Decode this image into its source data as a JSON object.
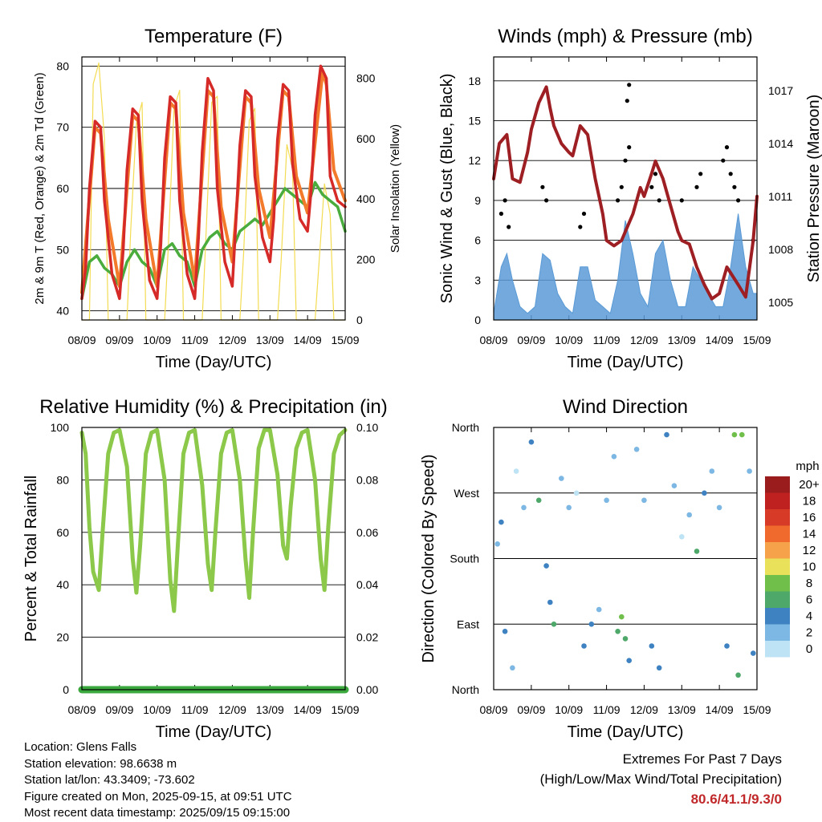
{
  "x_ticks": [
    "08/09",
    "09/09",
    "10/09",
    "11/09",
    "12/09",
    "13/09",
    "14/09",
    "15/09"
  ],
  "colors": {
    "temp_2m": "#d62a28",
    "temp_9m": "#f27a2a",
    "dewpoint": "#4aac3c",
    "solar": "#f3dc52",
    "wind": "#5a9ad6",
    "gust": "#000000",
    "pressure": "#9e1f23",
    "rh": "#8cc84a",
    "precip": "#3aa83c"
  },
  "chart_data": [
    {
      "id": "temperature",
      "type": "line",
      "title": "Temperature (F)",
      "xlabel": "Time (Day/UTC)",
      "ylabel": "2m & 9m T (Red, Orange) & 2m Td (Green)",
      "ylabel_right": "Solar Insolation (Yellow)",
      "ylim": [
        38.5,
        81.5
      ],
      "ylim_right": [
        0,
        870
      ],
      "yticks": [
        40,
        50,
        60,
        70,
        80
      ],
      "yticks_right": [
        0,
        200,
        400,
        600,
        800
      ],
      "grid": true,
      "series": [
        {
          "name": "2m T",
          "color": "#d62a28",
          "x": [
            0,
            0.1,
            0.2,
            0.35,
            0.5,
            0.6,
            0.8,
            1.0,
            1.1,
            1.2,
            1.35,
            1.5,
            1.6,
            1.8,
            2.0,
            2.1,
            2.2,
            2.35,
            2.5,
            2.6,
            2.8,
            3.0,
            3.1,
            3.2,
            3.35,
            3.5,
            3.6,
            3.8,
            4.0,
            4.1,
            4.2,
            4.35,
            4.5,
            4.6,
            4.8,
            5.0,
            5.1,
            5.2,
            5.35,
            5.5,
            5.6,
            5.8,
            6.0,
            6.1,
            6.2,
            6.35,
            6.5,
            6.6,
            6.8,
            7.0
          ],
          "y": [
            42,
            47,
            60,
            71,
            70,
            58,
            46,
            42,
            50,
            63,
            73,
            72,
            58,
            45,
            42,
            51,
            65,
            75,
            74,
            58,
            46,
            42,
            52,
            66,
            78,
            76,
            60,
            48,
            44,
            55,
            67,
            76,
            75,
            62,
            52,
            48,
            55,
            68,
            77,
            76,
            64,
            55,
            53,
            60,
            72,
            80,
            78,
            62,
            58,
            57
          ]
        },
        {
          "name": "9m T",
          "color": "#f27a2a",
          "x": [
            0,
            0.35,
            0.5,
            0.7,
            1.0,
            1.35,
            1.5,
            1.7,
            2.0,
            2.35,
            2.5,
            2.7,
            3.0,
            3.35,
            3.5,
            3.7,
            4.0,
            4.35,
            4.5,
            4.7,
            5.0,
            5.35,
            5.5,
            5.7,
            6.0,
            6.4,
            6.5,
            6.7,
            7.0
          ],
          "y": [
            43,
            70,
            69,
            55,
            44,
            72,
            71,
            55,
            44,
            74,
            73,
            56,
            45,
            76,
            75,
            57,
            48,
            75,
            74,
            60,
            52,
            76,
            75,
            62,
            56,
            79,
            77,
            63,
            58
          ]
        },
        {
          "name": "2m Td",
          "color": "#4aac3c",
          "x": [
            0,
            0.2,
            0.4,
            0.6,
            0.8,
            1.0,
            1.2,
            1.4,
            1.6,
            1.8,
            2.0,
            2.2,
            2.4,
            2.6,
            2.8,
            3.0,
            3.2,
            3.4,
            3.6,
            3.8,
            4.0,
            4.2,
            4.4,
            4.6,
            4.8,
            5.0,
            5.2,
            5.4,
            5.6,
            5.8,
            6.0,
            6.2,
            6.4,
            6.6,
            6.8,
            7.0
          ],
          "y": [
            42,
            48,
            49,
            47,
            46,
            44,
            48,
            50,
            48,
            47,
            44,
            50,
            51,
            49,
            48,
            44,
            50,
            52,
            53,
            51,
            50,
            53,
            54,
            55,
            54,
            56,
            58,
            60,
            59,
            58,
            57,
            61,
            59,
            58,
            57,
            53
          ]
        },
        {
          "name": "Solar Insolation",
          "axis": "right",
          "color": "#f3dc52",
          "x": [
            0,
            0.2,
            0.3,
            0.45,
            0.6,
            0.7,
            1.2,
            1.3,
            1.45,
            1.6,
            1.7,
            2.2,
            2.3,
            2.45,
            2.6,
            2.7,
            3.2,
            3.3,
            3.45,
            3.6,
            3.7,
            4.2,
            4.3,
            4.45,
            4.6,
            4.7,
            5.2,
            5.3,
            5.45,
            5.6,
            5.7,
            6.2,
            6.3,
            6.45,
            6.6,
            6.7,
            7.0
          ],
          "y": [
            0,
            0,
            780,
            850,
            600,
            0,
            0,
            300,
            650,
            720,
            0,
            0,
            250,
            700,
            760,
            0,
            0,
            280,
            720,
            740,
            0,
            0,
            220,
            660,
            700,
            0,
            0,
            200,
            580,
            500,
            0,
            0,
            180,
            450,
            350,
            0,
            0
          ]
        }
      ]
    },
    {
      "id": "winds",
      "type": "line",
      "title": "Winds (mph) & Pressure (mb)",
      "xlabel": "Time (Day/UTC)",
      "ylabel": "Sonic Wind & Gust (Blue, Black)",
      "ylabel_right": "Station Pressure (Maroon)",
      "ylim": [
        0,
        19.8
      ],
      "ylim_right": [
        1004.0,
        1018.9
      ],
      "yticks": [
        0,
        3,
        6,
        9,
        12,
        15,
        18
      ],
      "yticks_right": [
        1005,
        1008,
        1011,
        1014,
        1017
      ],
      "grid": true,
      "series": [
        {
          "name": "Station Pressure",
          "axis": "right",
          "color": "#9e1f23",
          "x": [
            0,
            0.15,
            0.35,
            0.5,
            0.7,
            0.9,
            1.0,
            1.2,
            1.4,
            1.5,
            1.6,
            1.8,
            2.0,
            2.1,
            2.3,
            2.5,
            2.7,
            2.9,
            3.0,
            3.2,
            3.4,
            3.5,
            3.7,
            3.9,
            4.0,
            4.2,
            4.3,
            4.5,
            4.7,
            4.9,
            5.0,
            5.2,
            5.4,
            5.6,
            5.8,
            6.0,
            6.2,
            6.5,
            6.7,
            6.9,
            7.0
          ],
          "y": [
            1012,
            1014,
            1014.5,
            1012,
            1011.8,
            1013.5,
            1014.8,
            1016.3,
            1017.2,
            1016,
            1015,
            1014,
            1013.5,
            1013.3,
            1015,
            1014.5,
            1012,
            1010,
            1008.5,
            1008.2,
            1008.5,
            1009,
            1010,
            1011.5,
            1011,
            1012.3,
            1013,
            1012,
            1010.5,
            1009,
            1008.5,
            1008.3,
            1007,
            1006,
            1005.2,
            1005.5,
            1007,
            1006,
            1005.3,
            1008.5,
            1011
          ]
        },
        {
          "name": "Sonic Wind",
          "color": "#5a9ad6",
          "x": [
            0,
            0.2,
            0.35,
            0.5,
            0.7,
            0.9,
            1.1,
            1.3,
            1.5,
            1.7,
            1.9,
            2.1,
            2.3,
            2.5,
            2.7,
            2.9,
            3.1,
            3.3,
            3.5,
            3.7,
            3.9,
            4.1,
            4.3,
            4.5,
            4.7,
            4.9,
            5.1,
            5.3,
            5.5,
            5.7,
            5.9,
            6.1,
            6.3,
            6.5,
            6.7,
            6.9,
            7.0
          ],
          "y": [
            0.5,
            4,
            5,
            3,
            1,
            0.5,
            1,
            5,
            4.5,
            2,
            1,
            0.5,
            4,
            4,
            1.5,
            1,
            0.5,
            3,
            7.5,
            5,
            2,
            1,
            5,
            6,
            3,
            1,
            1,
            4,
            3,
            2,
            1,
            1,
            4,
            8,
            4,
            2,
            2
          ]
        },
        {
          "name": "Gust",
          "type": "scatter",
          "color": "#000000",
          "x": [
            0.2,
            0.3,
            0.4,
            1.3,
            1.4,
            2.3,
            2.4,
            3.3,
            3.4,
            3.5,
            3.6,
            3.55,
            3.6,
            4.2,
            4.3,
            4.4,
            5.0,
            5.4,
            5.5,
            6.1,
            6.2,
            6.3,
            6.4,
            6.5,
            6.9
          ],
          "y": [
            8,
            9,
            7,
            10,
            9,
            7,
            8,
            9,
            10,
            12,
            13,
            16.5,
            17.7,
            10,
            11,
            9,
            9,
            10,
            11,
            12,
            13,
            11,
            10,
            9,
            6
          ]
        }
      ]
    },
    {
      "id": "humidity",
      "type": "line",
      "title": "Relative Humidity (%) & Precipitation (in)",
      "xlabel": "Time (Day/UTC)",
      "ylabel": "Percent & Total Rainfall",
      "ylim": [
        0,
        100
      ],
      "ylim_right": [
        0,
        0.1
      ],
      "yticks": [
        0,
        20,
        40,
        60,
        80,
        100
      ],
      "yticks_right": [
        "0.00",
        "0.02",
        "0.04",
        "0.06",
        "0.08",
        "0.10"
      ],
      "grid": true,
      "series": [
        {
          "name": "Relative Humidity",
          "color": "#8cc84a",
          "x": [
            0,
            0.1,
            0.2,
            0.3,
            0.45,
            0.55,
            0.7,
            0.85,
            1.0,
            1.2,
            1.35,
            1.45,
            1.55,
            1.7,
            1.85,
            2.0,
            2.2,
            2.35,
            2.45,
            2.55,
            2.7,
            2.85,
            3.0,
            3.2,
            3.35,
            3.45,
            3.55,
            3.7,
            3.85,
            4.0,
            4.2,
            4.35,
            4.45,
            4.55,
            4.7,
            4.85,
            5.0,
            5.2,
            5.35,
            5.45,
            5.55,
            5.7,
            5.85,
            6.0,
            6.2,
            6.35,
            6.45,
            6.55,
            6.7,
            6.85,
            7.0
          ],
          "y": [
            98,
            90,
            62,
            45,
            38,
            60,
            90,
            98,
            99,
            85,
            50,
            37,
            55,
            90,
            98,
            99,
            80,
            42,
            30,
            55,
            90,
            98,
            99,
            78,
            48,
            38,
            60,
            90,
            98,
            99,
            80,
            50,
            35,
            60,
            92,
            99,
            99,
            82,
            55,
            50,
            70,
            92,
            98,
            99,
            80,
            50,
            38,
            62,
            90,
            97,
            99
          ]
        },
        {
          "name": "Total Precipitation",
          "axis": "right",
          "color": "#3aa83c",
          "x": [
            0,
            7.0
          ],
          "y": [
            0,
            0
          ]
        }
      ]
    },
    {
      "id": "wind_direction",
      "type": "scatter",
      "title": "Wind Direction",
      "xlabel": "Time (Day/UTC)",
      "ylabel": "Direction (Colored By Speed)",
      "yticks": [
        "North",
        "East",
        "South",
        "West",
        "North"
      ],
      "grid": true,
      "legend": {
        "title": "mph",
        "placement": "right",
        "labels": [
          "20+",
          "18",
          "16",
          "14",
          "12",
          "10",
          "8",
          "6",
          "4",
          "2",
          "0"
        ],
        "colors": [
          "#9b1c1c",
          "#bf2121",
          "#d83a28",
          "#ef6a2c",
          "#f6a24a",
          "#e9e15a",
          "#6fbf4a",
          "#4ea86a",
          "#3f82c2",
          "#7db7e3",
          "#bde3f5"
        ]
      },
      "series": [
        {
          "name": "Direction",
          "x": [
            0.1,
            0.2,
            0.3,
            0.5,
            0.6,
            0.8,
            1.0,
            1.2,
            1.4,
            1.5,
            1.6,
            1.8,
            2.0,
            2.2,
            2.4,
            2.6,
            2.8,
            3.0,
            3.2,
            3.3,
            3.4,
            3.5,
            3.6,
            3.8,
            4.0,
            4.2,
            4.4,
            4.6,
            4.8,
            5.0,
            5.2,
            5.4,
            5.6,
            5.8,
            6.0,
            6.2,
            6.4,
            6.5,
            6.6,
            6.8,
            6.9
          ],
          "direction_deg": [
            200,
            230,
            80,
            30,
            300,
            250,
            340,
            260,
            170,
            120,
            90,
            290,
            250,
            270,
            60,
            90,
            110,
            260,
            320,
            80,
            100,
            70,
            40,
            330,
            260,
            60,
            30,
            350,
            280,
            210,
            240,
            190,
            270,
            300,
            250,
            60,
            350,
            20,
            350,
            300,
            50
          ],
          "speed_mph": [
            2,
            4,
            3,
            1,
            0,
            2,
            3,
            5,
            4,
            3,
            6,
            2,
            1,
            0,
            3,
            4,
            2,
            1,
            2,
            5,
            7,
            6,
            4,
            1,
            2,
            3,
            4,
            3,
            1,
            0,
            2,
            5,
            3,
            1,
            2,
            4,
            7,
            6,
            7,
            2,
            3
          ]
        }
      ]
    }
  ],
  "info": {
    "location": "Location: Glens Falls",
    "elevation": "Station elevation: 98.6638 m",
    "latlon": "Station lat/lon: 43.3409; -73.602",
    "created": "Figure created on Mon, 2025-09-15, at 09:51 UTC",
    "recent": "Most recent data timestamp: 2025/09/15 09:15:00"
  },
  "extremes": {
    "title": "Extremes For Past 7 Days",
    "subtitle": "(High/Low/Max Wind/Total Precipitation)",
    "values": "80.6/41.1/9.3/0"
  }
}
